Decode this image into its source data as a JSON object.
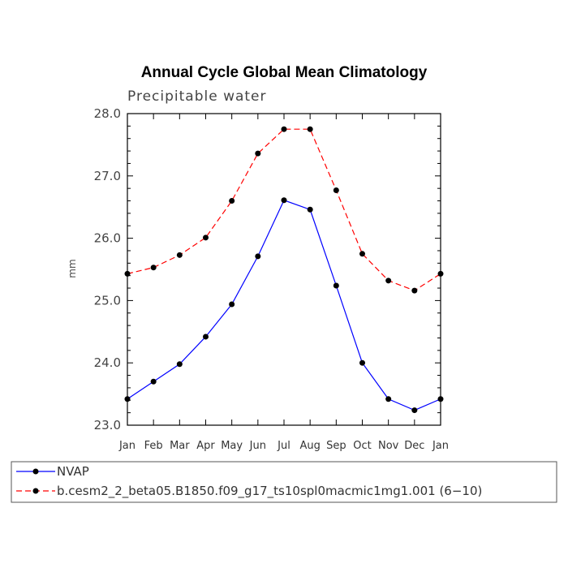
{
  "chart_data": {
    "type": "line",
    "title": "Annual Cycle Global Mean Climatology",
    "subtitle": "Precipitable water",
    "xlabel": "",
    "ylabel": "mm",
    "categories": [
      "Jan",
      "Feb",
      "Mar",
      "Apr",
      "May",
      "Jun",
      "Jul",
      "Aug",
      "Sep",
      "Oct",
      "Nov",
      "Dec",
      "Jan"
    ],
    "ylim": [
      23.0,
      28.0
    ],
    "yticks": [
      "23.0",
      "24.0",
      "25.0",
      "26.0",
      "27.0",
      "28.0"
    ],
    "series": [
      {
        "name": "NVAP",
        "color": "#0000ff",
        "dash": "solid",
        "values": [
          23.42,
          23.7,
          23.98,
          24.42,
          24.94,
          25.71,
          26.61,
          26.46,
          25.24,
          24.0,
          23.42,
          23.24,
          23.42
        ]
      },
      {
        "name": "b.cesm2_2_beta05.B1850.f09_g17_ts10spl0macmic1mg1.001 (6−10)",
        "color": "#ff0000",
        "dash": "dashed",
        "values": [
          25.43,
          25.53,
          25.73,
          26.01,
          26.6,
          27.36,
          27.75,
          27.75,
          26.77,
          25.75,
          25.32,
          25.16,
          25.43
        ]
      }
    ],
    "grid": false,
    "legend_position": "bottom"
  }
}
